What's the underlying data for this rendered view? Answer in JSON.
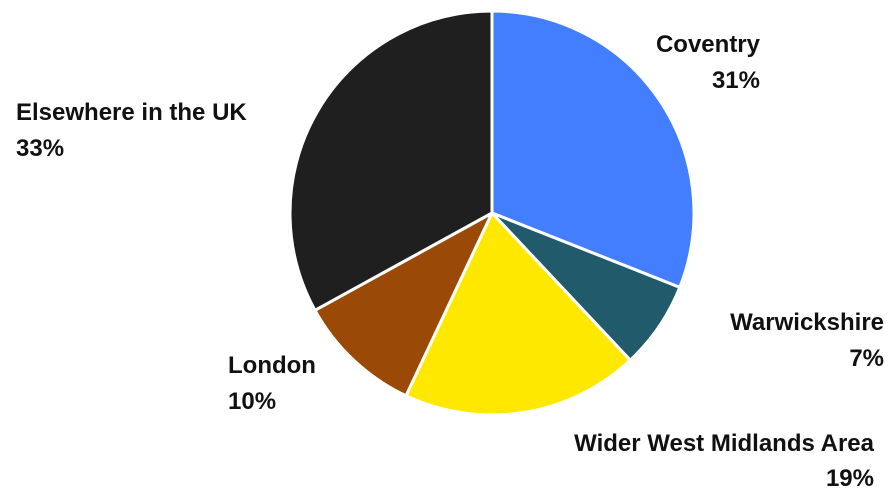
{
  "chart_data": {
    "type": "pie",
    "start_angle_deg": 0,
    "direction": "clockwise",
    "slices": [
      {
        "label": "Coventry",
        "value": 31,
        "value_label": "31%",
        "color": "#437EFF"
      },
      {
        "label": "Warwickshire",
        "value": 7,
        "value_label": "7%",
        "color": "#215A6A"
      },
      {
        "label": "Wider West Midlands Area",
        "value": 19,
        "value_label": "19%",
        "color": "#FFE800"
      },
      {
        "label": "London",
        "value": 10,
        "value_label": "10%",
        "color": "#9A4A06"
      },
      {
        "label": "Elsewhere in the UK",
        "value": 33,
        "value_label": "33%",
        "color": "#1F1F1F"
      }
    ],
    "legend": "none"
  }
}
